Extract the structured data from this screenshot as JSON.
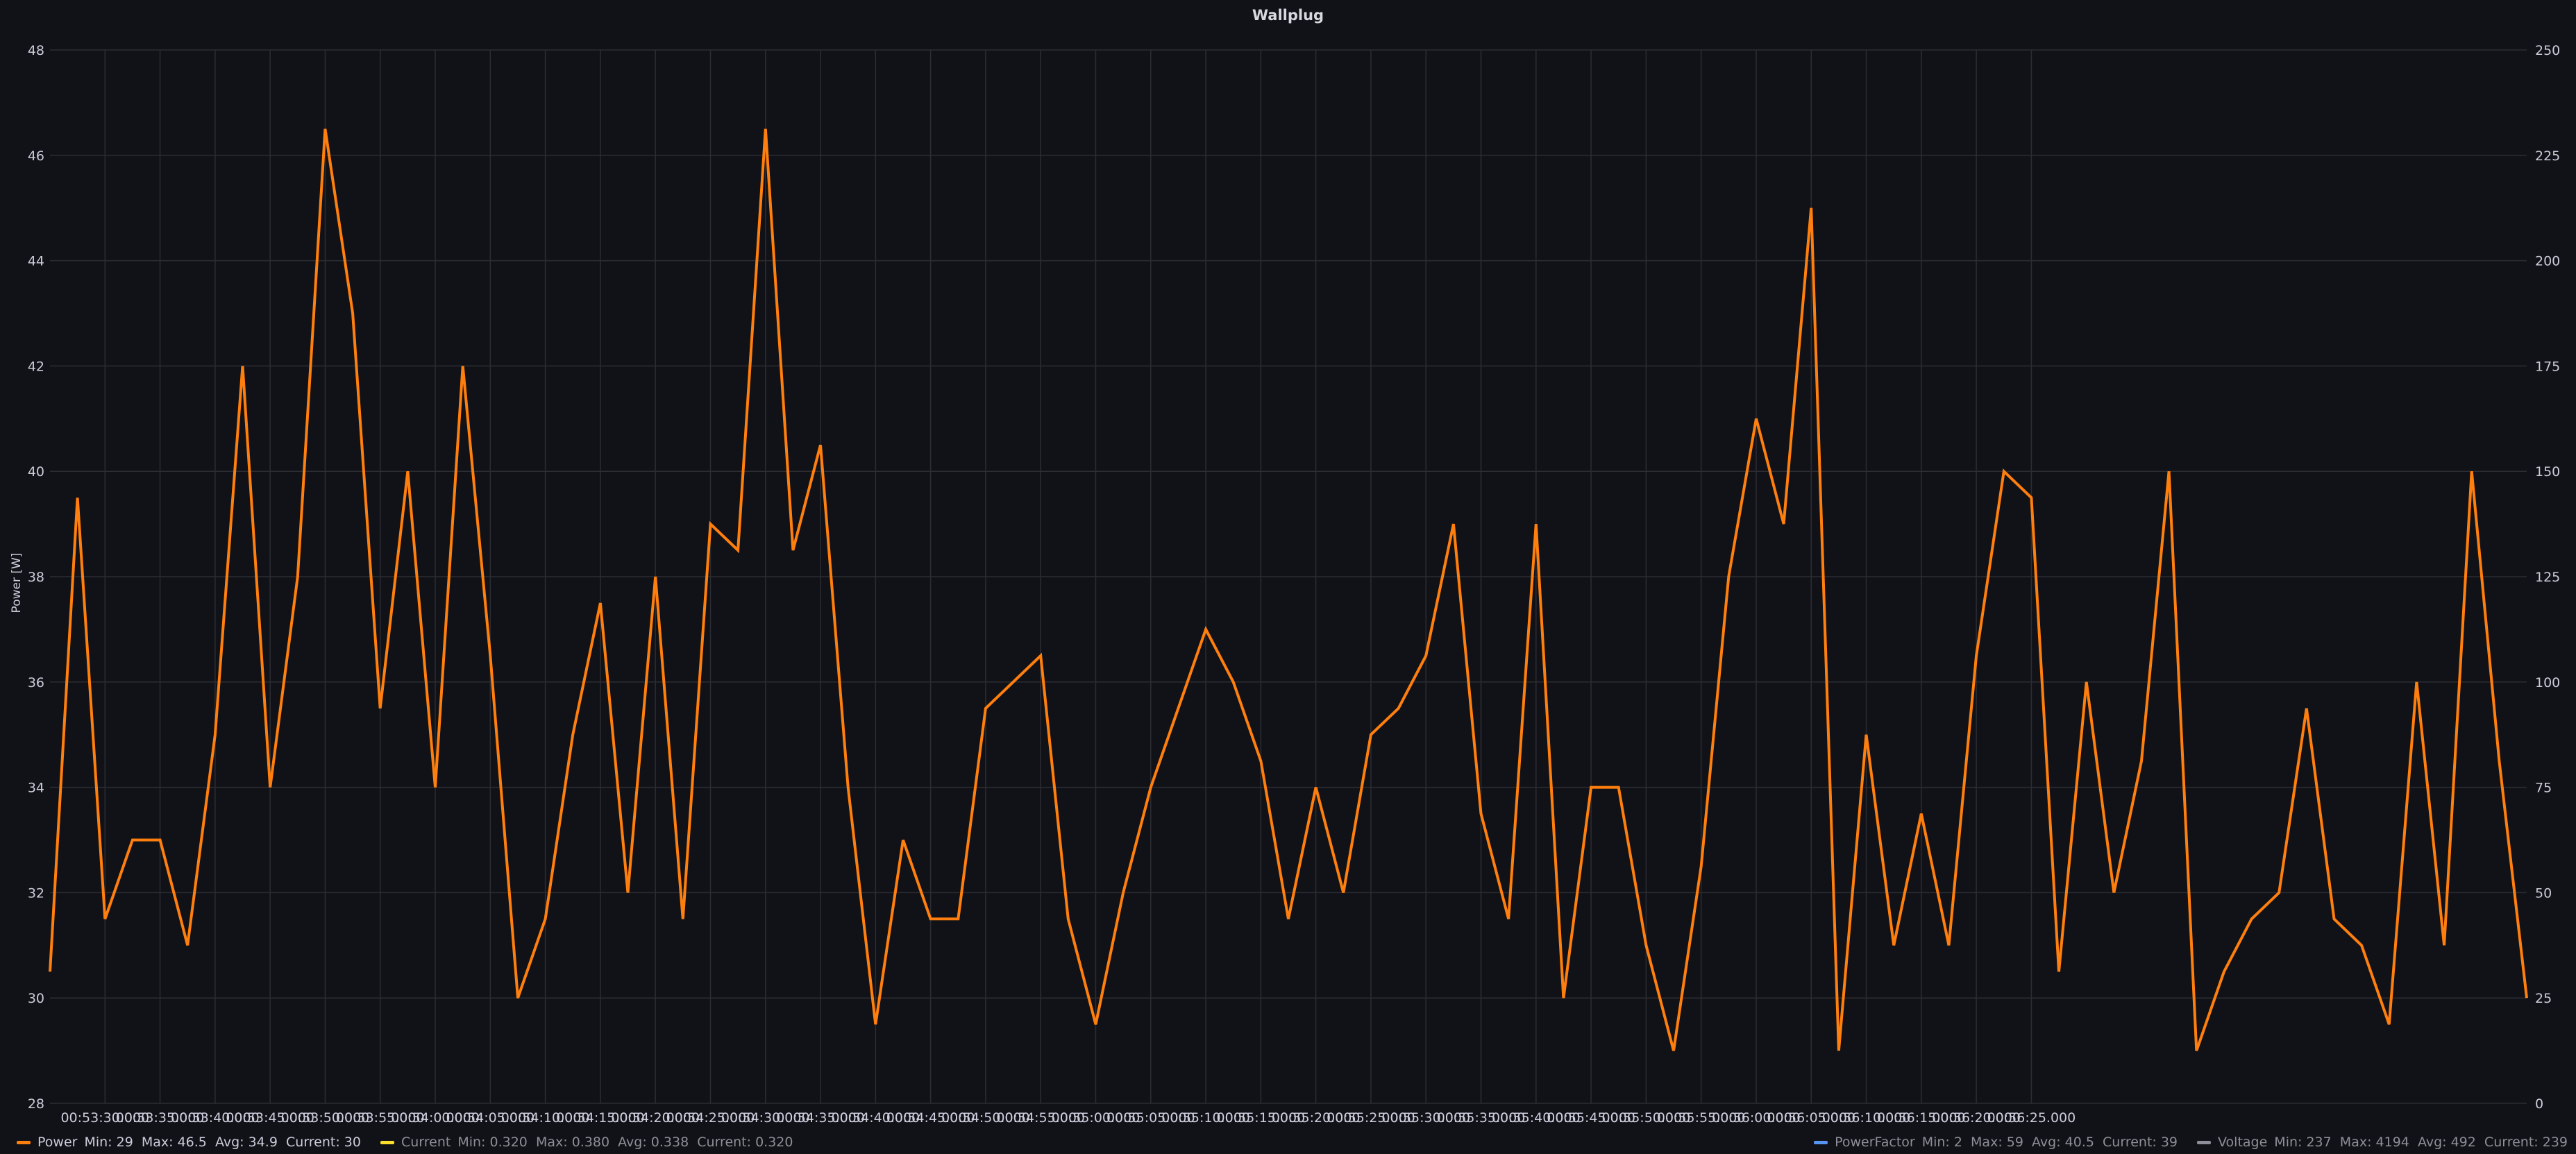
{
  "chart_data": {
    "type": "line",
    "title": "Wallplug",
    "ylabel": "Power [W]",
    "ylim": [
      28,
      48
    ],
    "y_ticks": [
      28,
      30,
      32,
      34,
      36,
      38,
      40,
      42,
      44,
      46,
      48
    ],
    "y2lim": [
      0,
      250
    ],
    "y2_ticks": [
      0,
      25,
      50,
      75,
      100,
      125,
      150,
      175,
      200,
      225,
      250
    ],
    "x_ticks": [
      "00:53:30.000",
      "00:53:35.000",
      "00:53:40.000",
      "00:53:45.000",
      "00:53:50.000",
      "00:53:55.000",
      "00:54:00.000",
      "00:54:05.000",
      "00:54:10.000",
      "00:54:15.000",
      "00:54:20.000",
      "00:54:25.000",
      "00:54:30.000",
      "00:54:35.000",
      "00:54:40.000",
      "00:54:45.000",
      "00:54:50.000",
      "00:54:55.000",
      "00:55:00.000",
      "00:55:05.000",
      "00:55:10.000",
      "00:55:15.000",
      "00:55:20.000",
      "00:55:25.000",
      "00:55:30.000",
      "00:55:35.000",
      "00:55:40.000",
      "00:55:45.000",
      "00:55:50.000",
      "00:55:55.000",
      "00:56:00.000",
      "00:56:05.000",
      "00:56:10.000",
      "00:56:15.000",
      "00:56:20.000",
      "00:56:25.000"
    ],
    "grid": true,
    "series": [
      {
        "name": "Power",
        "color": "#ff7f0e",
        "values": [
          30.5,
          39.5,
          31.5,
          33,
          33,
          31,
          35,
          42,
          34,
          38,
          46.5,
          43,
          35.5,
          40,
          34,
          42,
          36.5,
          30,
          31.5,
          35,
          37.5,
          32,
          38,
          31.5,
          39,
          38.5,
          46.5,
          38.5,
          40.5,
          34,
          29.5,
          33,
          31.5,
          31.5,
          35.5,
          36,
          36.5,
          31.5,
          29.5,
          32,
          34,
          35.5,
          37,
          36,
          34.5,
          31.5,
          34,
          32,
          35,
          35.5,
          36.5,
          39,
          33.5,
          31.5,
          39,
          30,
          34,
          34,
          31,
          29,
          32.5,
          38,
          41,
          39,
          45,
          29,
          35,
          31,
          33.5,
          31,
          36.5,
          40,
          39.5,
          30.5,
          36,
          32,
          34.5,
          40,
          29,
          30.5,
          31.5,
          32,
          35.5,
          31.5,
          31,
          29.5,
          36,
          31,
          40,
          34.5,
          30
        ]
      }
    ],
    "legend": [
      {
        "name": "Power",
        "stats": "Min: 29  Max: 46.5  Avg: 34.9  Current: 30",
        "color": "#ff7f0e"
      },
      {
        "name": "Current",
        "stats": "Min: 0.320  Max: 0.380  Avg: 0.338  Current: 0.320",
        "color": "#fade2a"
      },
      {
        "name": "PowerFactor",
        "stats": "Min: 2  Max: 59  Avg: 40.5  Current: 39",
        "color": "#5794f2"
      },
      {
        "name": "Voltage",
        "stats": "Min: 237  Max: 4194  Avg: 492  Current: 239",
        "color": "#8e8e98"
      }
    ]
  }
}
